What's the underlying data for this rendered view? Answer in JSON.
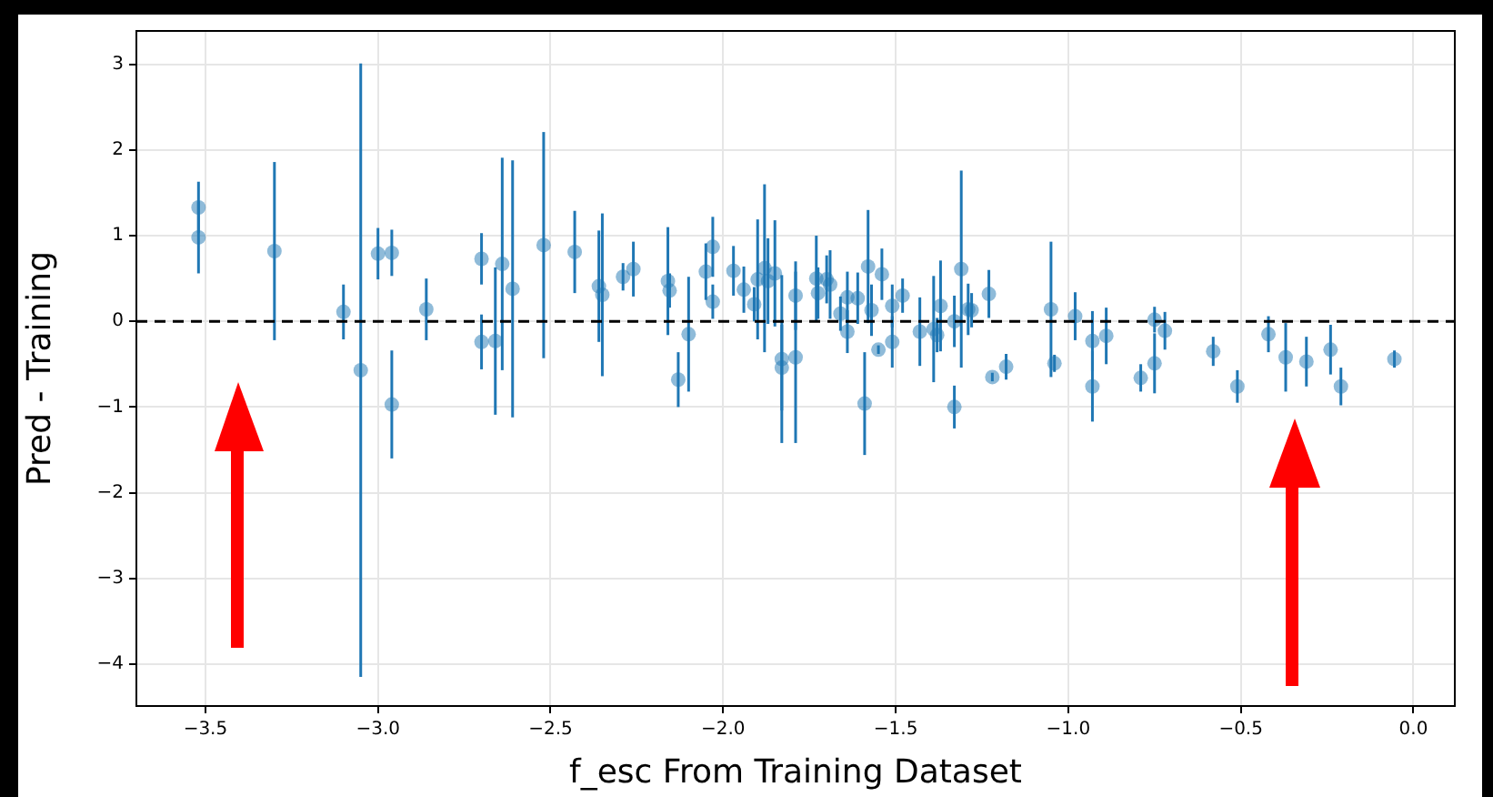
{
  "chart_data": {
    "type": "scatter",
    "xlabel": "f_esc From Training Dataset",
    "ylabel": "Pred - Training",
    "xlim": [
      -3.7,
      0.12
    ],
    "ylim": [
      -4.49,
      3.39
    ],
    "xticks": [
      {
        "value": -3.5,
        "label": "−3.5"
      },
      {
        "value": -3.0,
        "label": "−3.0"
      },
      {
        "value": -2.5,
        "label": "−2.5"
      },
      {
        "value": -2.0,
        "label": "−2.0"
      },
      {
        "value": -1.5,
        "label": "−1.5"
      },
      {
        "value": -1.0,
        "label": "−1.0"
      },
      {
        "value": -0.5,
        "label": "−0.5"
      },
      {
        "value": 0,
        "label": "0.0"
      }
    ],
    "yticks": [
      {
        "value": -4,
        "label": "−4"
      },
      {
        "value": -3,
        "label": "−3"
      },
      {
        "value": -2,
        "label": "−2"
      },
      {
        "value": -1,
        "label": "−1"
      },
      0,
      1,
      2,
      3
    ],
    "grid": true,
    "legend": false,
    "marker": "circle",
    "ref_lines": [
      {
        "axis": "y",
        "value": 0,
        "color": "#000000",
        "line_style": "dashed"
      }
    ],
    "series": [
      {
        "color": "#1f77b4",
        "x": [
          -3.52,
          -3.52,
          -3.3,
          -3.1,
          -3.05,
          -3.0,
          -2.96,
          -2.96,
          -2.86,
          -2.7,
          -2.7,
          -2.66,
          -2.64,
          -2.61,
          -2.52,
          -2.43,
          -2.36,
          -2.35,
          -2.29,
          -2.26,
          -2.16,
          -2.155,
          -2.13,
          -2.1,
          -2.05,
          -2.03,
          -2.03,
          -1.97,
          -1.94,
          -1.91,
          -1.9,
          -1.88,
          -1.87,
          -1.85,
          -1.83,
          -1.83,
          -1.79,
          -1.79,
          -1.73,
          -1.725,
          -1.7,
          -1.69,
          -1.66,
          -1.64,
          -1.64,
          -1.61,
          -1.59,
          -1.58,
          -1.57,
          -1.55,
          -1.54,
          -1.51,
          -1.51,
          -1.48,
          -1.43,
          -1.39,
          -1.38,
          -1.37,
          -1.33,
          -1.33,
          -1.31,
          -1.29,
          -1.28,
          -1.23,
          -1.22,
          -1.18,
          -1.05,
          -1.04,
          -0.98,
          -0.93,
          -0.93,
          -0.89,
          -0.79,
          -0.75,
          -0.75,
          -0.72,
          -0.58,
          -0.51,
          -0.42,
          -0.37,
          -0.31,
          -0.24,
          -0.21,
          -0.055
        ],
        "values": [
          1.33,
          0.98,
          0.82,
          0.11,
          -0.57,
          0.79,
          0.8,
          -0.97,
          0.14,
          0.73,
          -0.24,
          -0.23,
          0.67,
          0.38,
          0.89,
          0.81,
          0.41,
          0.31,
          0.52,
          0.61,
          0.47,
          0.36,
          -0.68,
          -0.15,
          0.58,
          0.87,
          0.23,
          0.59,
          0.37,
          0.2,
          0.49,
          0.62,
          0.47,
          0.56,
          -0.44,
          -0.54,
          -0.42,
          0.3,
          0.5,
          0.33,
          0.49,
          0.43,
          0.09,
          0.28,
          -0.12,
          0.27,
          -0.96,
          0.64,
          0.13,
          -0.33,
          0.55,
          0.18,
          -0.24,
          0.3,
          -0.12,
          -0.09,
          -0.16,
          0.18,
          -1.0,
          0,
          0.61,
          0.14,
          0.13,
          0.32,
          -0.65,
          -0.53,
          0.14,
          -0.49,
          0.06,
          -0.23,
          -0.76,
          -0.17,
          -0.66,
          -0.49,
          0.02,
          -0.11,
          -0.35,
          -0.76,
          -0.15,
          -0.42,
          -0.47,
          -0.33,
          -0.76,
          -0.44
        ],
        "errors": [
          0.3,
          0.42,
          1.04,
          0.32,
          3.58,
          0.3,
          0.27,
          0.63,
          0.36,
          0.3,
          0.32,
          0.86,
          1.24,
          1.5,
          1.32,
          0.48,
          0.65,
          0.95,
          0.16,
          0.32,
          0.63,
          0.2,
          0.32,
          0.67,
          0.33,
          0.35,
          0.2,
          0.29,
          0.27,
          0.2,
          0.7,
          0.98,
          0.5,
          0.62,
          0.98,
          0.5,
          1.0,
          0.4,
          0.5,
          0.3,
          0.28,
          0.4,
          0.2,
          0.3,
          0.25,
          0.3,
          0.6,
          0.66,
          0.3,
          0.05,
          0.3,
          0.25,
          0.3,
          0.2,
          0.4,
          0.62,
          0.2,
          0.53,
          0.25,
          0.3,
          1.15,
          0.3,
          0.2,
          0.28,
          0.05,
          0.15,
          0.79,
          0.1,
          0.28,
          0.35,
          0.41,
          0.33,
          0.16,
          0.35,
          0.15,
          0.22,
          0.17,
          0.19,
          0.21,
          0.4,
          0.29,
          0.29,
          0.22,
          0.1
        ]
      }
    ]
  }
}
